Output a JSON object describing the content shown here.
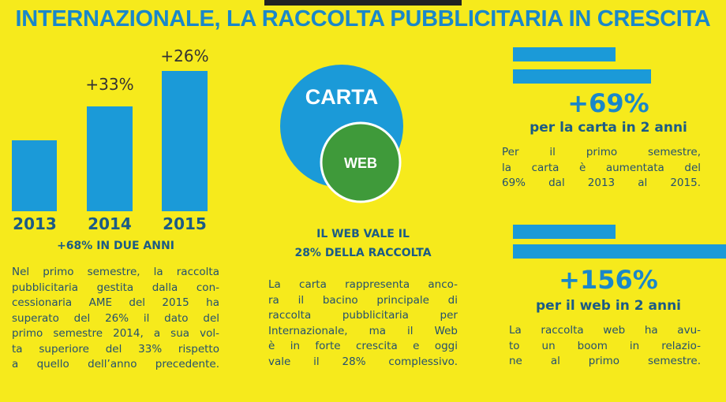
{
  "title": "INTERNAZIONALE, LA RACCOLTA PUBBLICITARIA IN CRESCITA",
  "left": {
    "bars": [
      {
        "year": "2013",
        "label": null
      },
      {
        "year": "2014",
        "label": "+33%"
      },
      {
        "year": "2015",
        "label": "+26%"
      }
    ],
    "caption": "+68% IN DUE ANNI",
    "text_lines": [
      "Nel primo semestre, la raccolta",
      "pubblicitaria gestita dalla con-",
      "cessionaria AME del 2015 ha",
      "superato del  26% il dato del",
      "primo semestre 2014, a sua vol-",
      "ta superiore del 33% rispetto",
      "a quello dell’anno precedente."
    ]
  },
  "middle": {
    "outer_label": "CARTA",
    "inner_label": "WEB",
    "caption_lines": [
      "IL WEB VALE IL",
      "28% DELLA RACCOLTA"
    ],
    "text_lines": [
      "La carta rappresenta anco-",
      "ra il bacino principale di",
      "raccolta pubblicitaria per",
      "Internazionale, ma il Web",
      "è in forte crescita e oggi",
      "vale il  28% complessivo."
    ]
  },
  "right": [
    {
      "figure": "+69%",
      "subtitle": "per la carta in 2 anni",
      "text_lines": [
        "Per il primo semestre,",
        "la carta è aumentata del",
        "69% dal 2013 al 2015."
      ]
    },
    {
      "figure": "+156%",
      "subtitle": "per il web in 2 anni",
      "text_lines": [
        "La raccolta web ha avu-",
        "to un boom in relazio-",
        "ne al primo semestre."
      ]
    }
  ]
}
